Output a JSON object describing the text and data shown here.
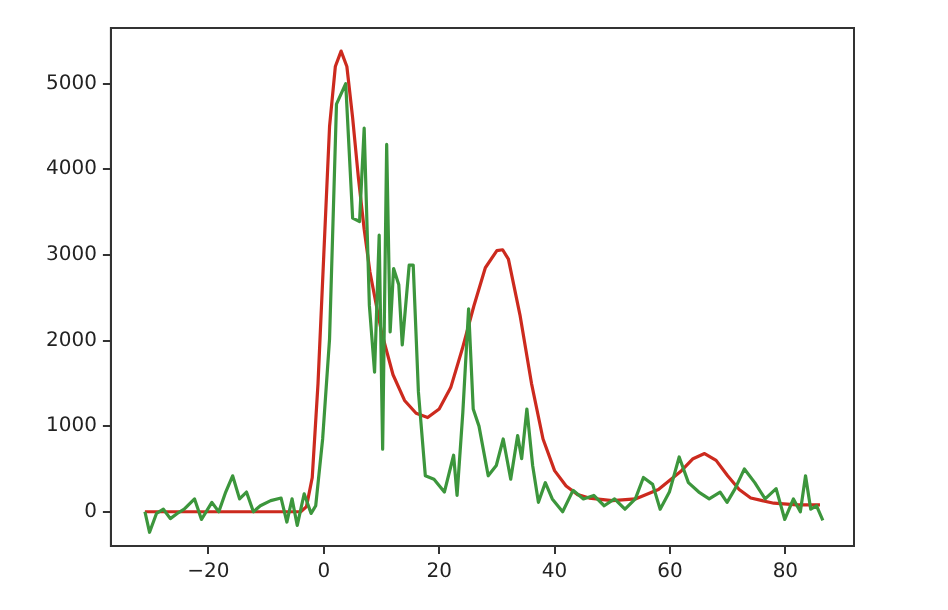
{
  "chart_data": {
    "type": "line",
    "xlim": [
      -36.9,
      91.9
    ],
    "ylim": [
      -400,
      5650
    ],
    "xticks": [
      -20,
      0,
      20,
      40,
      60,
      80
    ],
    "yticks": [
      0,
      1000,
      2000,
      3000,
      4000,
      5000
    ],
    "grid": false,
    "legend": false,
    "marker": "none",
    "line_style": "solid",
    "series": [
      {
        "color": "#3c963c",
        "x": [
          -31,
          -30.2,
          -29,
          -27.8,
          -26.6,
          -25.4,
          -24.2,
          -22.4,
          -21.2,
          -19.4,
          -18.2,
          -17,
          -15.8,
          -14.6,
          -13.4,
          -12.2,
          -11,
          -9.2,
          -7.4,
          -6.4,
          -5.5,
          -4.6,
          -3.4,
          -2.2,
          -1.4,
          -0.2,
          1,
          2.2,
          3.8,
          5,
          6.2,
          7,
          7.9,
          8.8,
          9.6,
          10.2,
          10.9,
          11.5,
          12.1,
          13,
          13.6,
          14.8,
          15.5,
          16.4,
          17.6,
          19.1,
          20.9,
          22.5,
          23.1,
          24.1,
          25.1,
          25.9,
          26.9,
          28.5,
          29.9,
          31.1,
          32.4,
          33.6,
          34.3,
          35.2,
          36.2,
          37.2,
          38.4,
          39.6,
          41.4,
          43.2,
          45,
          46.8,
          48.6,
          50.4,
          52.2,
          54,
          55.4,
          57,
          58.3,
          59.9,
          61.6,
          63.2,
          65,
          66.8,
          68.7,
          69.9,
          71.3,
          72.9,
          74.7,
          76.5,
          78.4,
          79.9,
          81.4,
          82.6,
          83.5,
          84.4,
          85.4,
          86.5
        ],
        "values": [
          0,
          -240,
          -20,
          30,
          -80,
          -20,
          30,
          150,
          -90,
          110,
          0,
          230,
          420,
          150,
          230,
          0,
          70,
          130,
          160,
          -120,
          150,
          -160,
          210,
          -20,
          70,
          850,
          2020,
          4760,
          5000,
          3430,
          3390,
          4480,
          2410,
          1630,
          3230,
          730,
          4290,
          2100,
          2840,
          2650,
          1950,
          2880,
          2880,
          1400,
          420,
          380,
          230,
          660,
          190,
          1160,
          2370,
          1200,
          1000,
          420,
          540,
          850,
          380,
          890,
          620,
          1200,
          540,
          110,
          340,
          150,
          0,
          250,
          150,
          190,
          70,
          150,
          30,
          150,
          400,
          320,
          30,
          230,
          640,
          340,
          230,
          150,
          230,
          110,
          270,
          500,
          340,
          150,
          270,
          -90,
          150,
          0,
          420,
          30,
          70,
          -100
        ]
      },
      {
        "color": "#cc2a1e",
        "x": [
          -31,
          -4,
          -3,
          -2,
          -1,
          0,
          1,
          2,
          3,
          4,
          5,
          6,
          7,
          8,
          10,
          12,
          14,
          16,
          18,
          20,
          22,
          24,
          26,
          28,
          30,
          31,
          32,
          34,
          36,
          38,
          40,
          42,
          44,
          46,
          50,
          54,
          58,
          62,
          64,
          66,
          68,
          70,
          72,
          74,
          78,
          82,
          86
        ],
        "values": [
          0,
          0,
          60,
          400,
          1500,
          3000,
          4500,
          5200,
          5380,
          5200,
          4600,
          3900,
          3300,
          2800,
          2100,
          1600,
          1300,
          1150,
          1100,
          1200,
          1450,
          1900,
          2400,
          2850,
          3050,
          3060,
          2950,
          2300,
          1500,
          850,
          480,
          300,
          200,
          160,
          130,
          150,
          260,
          480,
          620,
          680,
          600,
          420,
          260,
          160,
          100,
          80,
          80
        ]
      }
    ]
  }
}
